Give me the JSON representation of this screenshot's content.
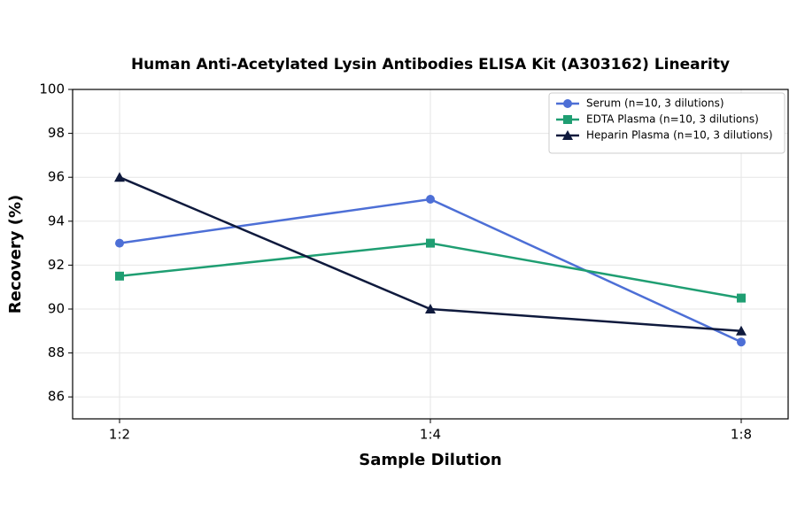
{
  "chart_data": {
    "type": "line",
    "title": "Human Anti-Acetylated Lysin Antibodies ELISA Kit (A303162) Linearity",
    "x_label": "Sample Dilution",
    "y_label": "Recovery (%)",
    "categories": [
      "1:2",
      "1:4",
      "1:8"
    ],
    "series": [
      {
        "name": "Serum (n=10, 3 dilutions)",
        "color": "#4d6fd6",
        "marker": "circle",
        "values": [
          93,
          95,
          88.5
        ]
      },
      {
        "name": "EDTA Plasma (n=10, 3 dilutions)",
        "color": "#1f9e72",
        "marker": "square",
        "values": [
          91.5,
          93,
          90.5
        ]
      },
      {
        "name": "Heparin Plasma (n=10, 3 dilutions)",
        "color": "#0f1a3d",
        "marker": "triangle",
        "values": [
          96,
          90,
          89
        ]
      }
    ],
    "ylim": [
      85,
      100
    ],
    "yticks": [
      86,
      88,
      90,
      92,
      94,
      96,
      98,
      100
    ],
    "grid": true,
    "legend": "upper-right"
  }
}
